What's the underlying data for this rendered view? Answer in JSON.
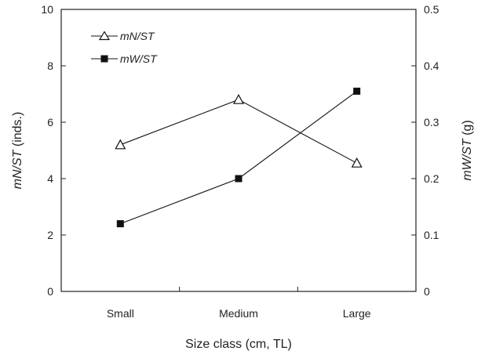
{
  "chart_data": {
    "type": "line",
    "categories": [
      "Small",
      "Medium",
      "Large"
    ],
    "xlabel": "Size class (cm, TL)",
    "ylabel_left": {
      "italic": "mN/ST",
      "rest": " (inds.)"
    },
    "ylabel_right": {
      "italic": "mW/ST",
      "rest": " (g)"
    },
    "ylim_left": [
      0,
      10
    ],
    "yticks_left": [
      "0",
      "2",
      "4",
      "6",
      "8",
      "10"
    ],
    "ylim_right": [
      0,
      0.5
    ],
    "yticks_right": [
      "0",
      "0.1",
      "0.2",
      "0.3",
      "0.4",
      "0.5"
    ],
    "grid": false,
    "legend_position": "top-left",
    "series": [
      {
        "name": "mN/ST",
        "axis": "left",
        "marker": "open-triangle",
        "values": [
          5.2,
          6.8,
          4.55
        ],
        "color": "#111111"
      },
      {
        "name": "mW/ST",
        "axis": "right",
        "marker": "filled-square",
        "values": [
          0.12,
          0.2,
          0.355
        ],
        "color": "#111111"
      }
    ]
  }
}
